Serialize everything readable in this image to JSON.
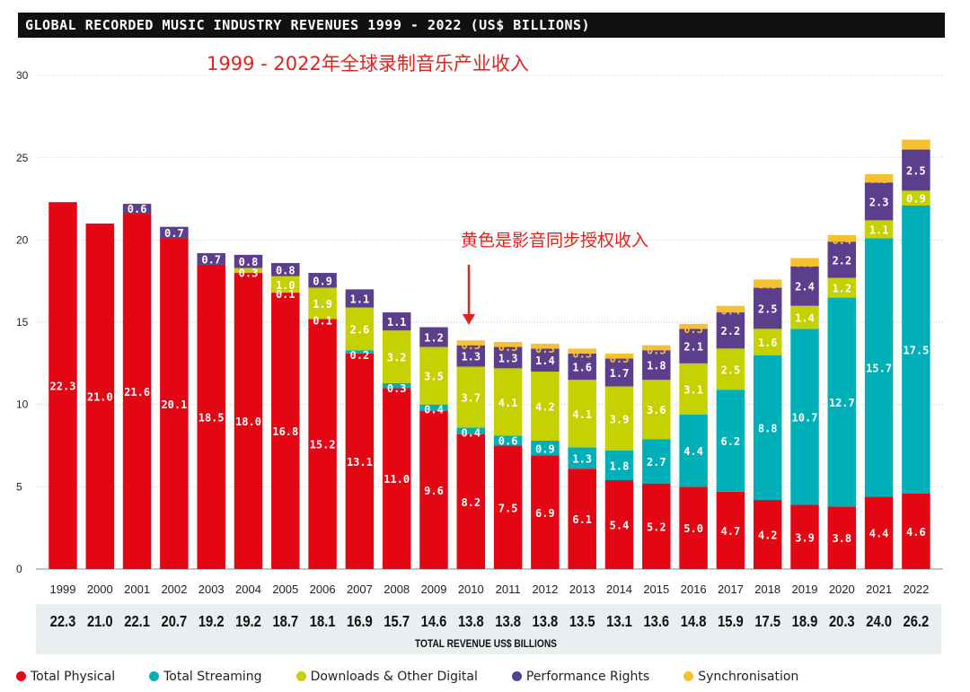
{
  "header": {
    "title": "GLOBAL RECORDED MUSIC INDUSTRY REVENUES 1999 - 2022 (US$ BILLIONS)",
    "subtitle": "1999 - 2022年全球录制音乐产业收入",
    "annotation": "黄色是影音同步授权收入"
  },
  "totals_label": "TOTAL REVENUE US$ BILLIONS",
  "colors": {
    "physical": "#e30613",
    "streaming": "#00b0b9",
    "downloads": "#c5d100",
    "performance": "#5b3f8c",
    "sync": "#f7c030",
    "title_bg": "#111111",
    "totals_bg": "#e9eef1",
    "annotation": "#e4211b"
  },
  "chart_data": {
    "type": "bar",
    "stacked": true,
    "title": "GLOBAL RECORDED MUSIC INDUSTRY REVENUES 1999 - 2022 (US$ BILLIONS)",
    "xlabel": "",
    "ylabel": "",
    "ylim": [
      0,
      30
    ],
    "yticks": [
      0,
      5,
      10,
      15,
      20,
      25,
      30
    ],
    "grid": true,
    "legend_position": "bottom",
    "categories": [
      "1999",
      "2000",
      "2001",
      "2002",
      "2003",
      "2004",
      "2005",
      "2006",
      "2007",
      "2008",
      "2009",
      "2010",
      "2011",
      "2012",
      "2013",
      "2014",
      "2015",
      "2016",
      "2017",
      "2018",
      "2019",
      "2020",
      "2021",
      "2022"
    ],
    "series": [
      {
        "name": "Total Physical",
        "key": "physical",
        "values": [
          22.3,
          21.0,
          21.6,
          20.1,
          18.5,
          18.0,
          16.8,
          15.2,
          13.1,
          11.0,
          9.6,
          8.2,
          7.5,
          6.9,
          6.1,
          5.4,
          5.2,
          5.0,
          4.7,
          4.2,
          3.9,
          3.8,
          4.4,
          4.6
        ]
      },
      {
        "name": "Total Streaming",
        "key": "streaming",
        "values": [
          null,
          null,
          null,
          null,
          null,
          null,
          null,
          null,
          0.2,
          0.3,
          0.4,
          0.4,
          0.6,
          0.9,
          1.3,
          1.8,
          2.7,
          4.4,
          6.2,
          8.8,
          10.7,
          12.7,
          15.7,
          17.5
        ]
      },
      {
        "name": "Downloads & Other Digital",
        "key": "downloads",
        "values": [
          null,
          null,
          null,
          null,
          null,
          0.3,
          1.0,
          1.9,
          2.6,
          3.2,
          3.5,
          3.7,
          4.1,
          4.2,
          4.1,
          3.9,
          3.6,
          3.1,
          2.5,
          1.6,
          1.4,
          1.2,
          1.1,
          0.9
        ]
      },
      {
        "name": "Performance Rights",
        "key": "performance",
        "values": [
          null,
          null,
          0.6,
          0.7,
          0.7,
          0.8,
          0.8,
          0.9,
          1.1,
          1.1,
          1.2,
          1.3,
          1.3,
          1.4,
          1.6,
          1.7,
          1.8,
          2.1,
          2.2,
          2.5,
          2.4,
          2.2,
          2.3,
          2.5
        ]
      },
      {
        "name": "Synchronisation",
        "key": "sync",
        "values": [
          null,
          null,
          null,
          null,
          null,
          null,
          null,
          null,
          null,
          null,
          null,
          0.3,
          0.3,
          0.3,
          0.3,
          0.3,
          0.3,
          0.3,
          0.4,
          0.5,
          0.5,
          0.4,
          0.5,
          0.6
        ]
      }
    ],
    "extra_labels": [
      {
        "year": "2005",
        "series": "Total Streaming",
        "label": "0.1"
      },
      {
        "year": "2006",
        "series": "Total Streaming",
        "label": "0.1"
      }
    ],
    "totals": [
      22.3,
      21.0,
      22.1,
      20.7,
      19.2,
      19.2,
      18.7,
      18.1,
      16.9,
      15.7,
      14.6,
      13.8,
      13.8,
      13.8,
      13.5,
      13.1,
      13.6,
      14.8,
      15.9,
      17.5,
      18.9,
      20.3,
      24.0,
      26.2
    ],
    "totals_display": [
      "22.3",
      "21.0",
      "22.1",
      "20.7",
      "19.2",
      "19.2",
      "18.7",
      "18.1",
      "16.9",
      "15.7",
      "14.6",
      "13.8",
      "13.8",
      "13.8",
      "13.5",
      "13.1",
      "13.6",
      "14.8",
      "15.9",
      "17.5",
      "18.9",
      "20.3",
      "24.0",
      "26.2"
    ]
  }
}
